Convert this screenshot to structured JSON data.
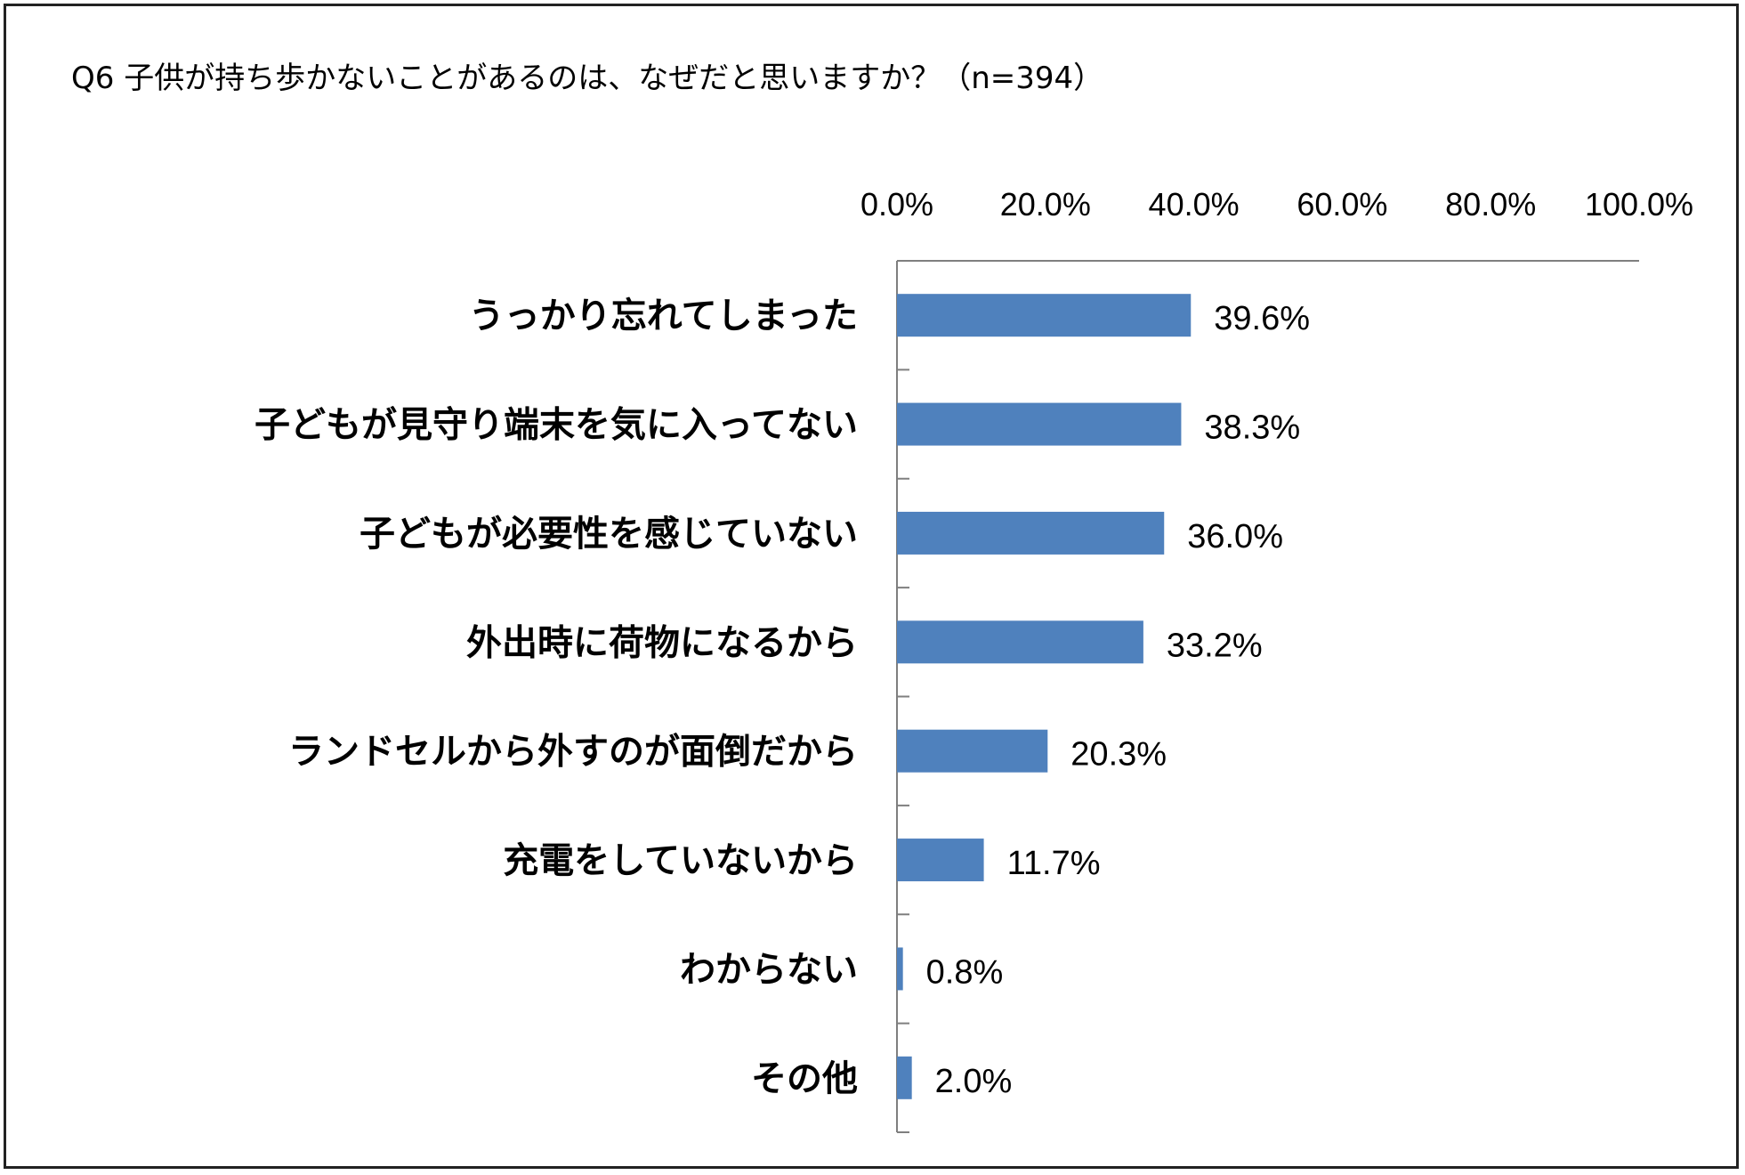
{
  "chart_data": {
    "type": "bar",
    "orientation": "horizontal",
    "title": "Q6 子供が持ち歩かないことがあるのは、なぜだと思いますか？（n=394）",
    "xlabel": "",
    "ylabel": "",
    "xlim": [
      0,
      100
    ],
    "x_ticks": [
      "0.0%",
      "20.0%",
      "40.0%",
      "60.0%",
      "80.0%",
      "100.0%"
    ],
    "x_axis_position": "top",
    "grid": false,
    "legend": "none",
    "bar_color": "#4f81bd",
    "categories": [
      "うっかり忘れてしまった",
      "子どもが見守り端末を気に入ってない",
      "子どもが必要性を感じていない",
      "外出時に荷物になるから",
      "ランドセルから外すのが面倒だから",
      "充電をしていないから",
      "わからない",
      "その他"
    ],
    "values": [
      39.6,
      38.3,
      36.0,
      33.2,
      20.3,
      11.7,
      0.8,
      2.0
    ],
    "data_labels": [
      "39.6%",
      "38.3%",
      "36.0%",
      "33.2%",
      "20.3%",
      "11.7%",
      "0.8%",
      "2.0%"
    ]
  }
}
